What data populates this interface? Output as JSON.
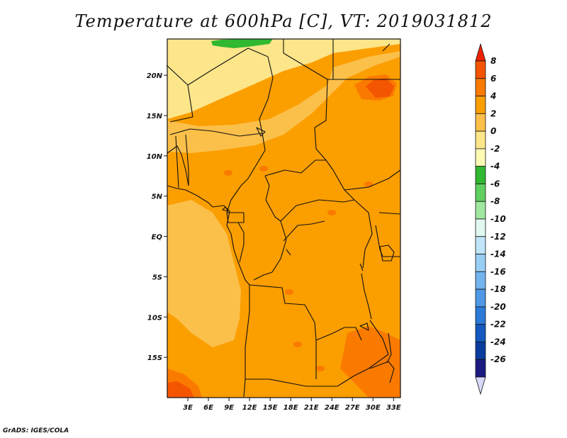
{
  "title": "Temperature at 600hPa [C], VT: 2019031812",
  "credit": "GrADS: IGES/COLA",
  "lat_labels": [
    "20N",
    "15N",
    "10N",
    "5N",
    "EQ",
    "5S",
    "10S",
    "15S"
  ],
  "lon_labels": [
    "3E",
    "6E",
    "9E",
    "12E",
    "15E",
    "18E",
    "21E",
    "24E",
    "27E",
    "30E",
    "33E"
  ],
  "colorbar": {
    "labels": [
      "8",
      "6",
      "4",
      "2",
      "0",
      "-2",
      "-4",
      "-6",
      "-8",
      "-10",
      "-12",
      "-14",
      "-16",
      "-18",
      "-20",
      "-22",
      "-24",
      "-26"
    ],
    "colors": [
      "#ee2200",
      "#f45500",
      "#fa7a00",
      "#fb9e00",
      "#fbc04a",
      "#fde58a",
      "#fdfab4",
      "#30b830",
      "#60d060",
      "#a0e8a0",
      "#e0f8f0",
      "#c0e4f8",
      "#98cef4",
      "#74b4ee",
      "#4e98e6",
      "#2c7ad8",
      "#1458c0",
      "#0a3ca0",
      "#1a1a80",
      "#d8d8f8"
    ]
  },
  "map": {
    "lon_range": [
      0,
      34
    ],
    "lat_range": [
      -20,
      24.5
    ],
    "fields": [
      {
        "name": "field-base",
        "color": "#fb9e00"
      },
      {
        "name": "field-sahara-cold",
        "color": "#fdfab4"
      },
      {
        "name": "field-sahel-warm",
        "color": "#fde58a"
      },
      {
        "name": "field-band-light",
        "color": "#fbc04a"
      },
      {
        "name": "field-atlantic-light",
        "color": "#fbc04a"
      },
      {
        "name": "field-green-patch",
        "color": "#30b830"
      },
      {
        "name": "field-libya-warm",
        "color": "#fa7a00"
      },
      {
        "name": "field-sudan-hot",
        "color": "#f45500"
      },
      {
        "name": "field-southeast-warm",
        "color": "#fa7a00"
      },
      {
        "name": "field-southwest-warm",
        "color": "#fa7a00"
      },
      {
        "name": "field-southwest-hot",
        "color": "#f45500"
      }
    ]
  }
}
